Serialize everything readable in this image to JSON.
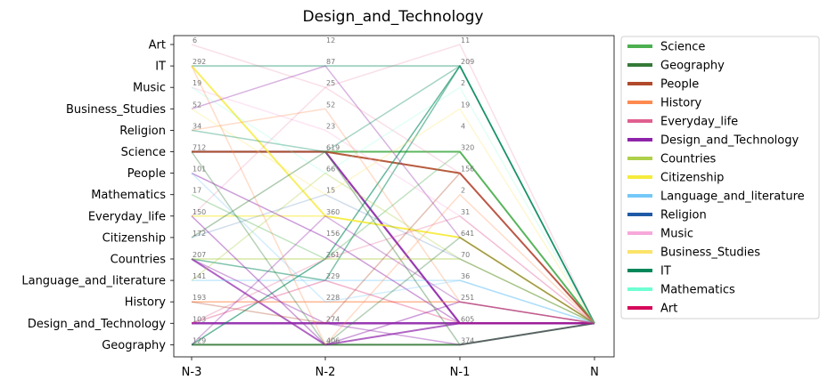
{
  "chart_data": {
    "type": "line",
    "title": "Design_and_Technology",
    "x_ticks": [
      "N-3",
      "N-2",
      "N-1",
      "N"
    ],
    "y_categories": [
      "Art",
      "IT",
      "Music",
      "Business_Studies",
      "Religion",
      "Science",
      "People",
      "Mathematics",
      "Everyday_life",
      "Citizenship",
      "Countries",
      "Language_and_literature",
      "History",
      "Design_and_Technology",
      "Geography"
    ],
    "counts": {
      "N-3": {
        "Art": 6,
        "IT": 292,
        "Music": 19,
        "Business_Studies": 52,
        "Religion": 34,
        "Science": 712,
        "People": 101,
        "Mathematics": 17,
        "Everyday_life": 150,
        "Citizenship": 172,
        "Countries": 207,
        "Language_and_literature": 141,
        "History": 193,
        "Design_and_Technology": 103,
        "Geography": 129
      },
      "N-2": {
        "Art": 12,
        "IT": 87,
        "Music": 25,
        "Business_Studies": 52,
        "Religion": 23,
        "Science": 619,
        "People": 66,
        "Mathematics": 15,
        "Everyday_life": 360,
        "Citizenship": 156,
        "Countries": 261,
        "Language_and_literature": 229,
        "History": 228,
        "Design_and_Technology": 274,
        "Geography": 406
      },
      "N-1": {
        "Art": 11,
        "IT": 209,
        "Music": 2,
        "Business_Studies": 19,
        "Religion": 4,
        "Science": 320,
        "People": 156,
        "Mathematics": 2,
        "Everyday_life": 31,
        "Citizenship": 641,
        "Countries": 70,
        "Language_and_literature": 36,
        "History": 251,
        "Design_and_Technology": 605,
        "Geography": 374
      }
    },
    "target": "Design_and_Technology",
    "legend_placement": "outside-right",
    "legend": [
      {
        "name": "Science",
        "color": "#4caf50"
      },
      {
        "name": "Geography",
        "color": "#357a38"
      },
      {
        "name": "People",
        "color": "#b04a2a"
      },
      {
        "name": "History",
        "color": "#ff8a50"
      },
      {
        "name": "Everyday_life",
        "color": "#e06090"
      },
      {
        "name": "Design_and_Technology",
        "color": "#8e24aa"
      },
      {
        "name": "Countries",
        "color": "#aed04a"
      },
      {
        "name": "Citizenship",
        "color": "#f5eb3b"
      },
      {
        "name": "Language_and_literature",
        "color": "#74c8f8"
      },
      {
        "name": "Religion",
        "color": "#1f5aa6"
      },
      {
        "name": "Music",
        "color": "#f7a8da"
      },
      {
        "name": "Business_Studies",
        "color": "#fbe36a"
      },
      {
        "name": "IT",
        "color": "#00875a"
      },
      {
        "name": "Mathematics",
        "color": "#6effd2"
      },
      {
        "name": "Art",
        "color": "#d6085a"
      }
    ],
    "paths": [
      {
        "series": "Geography",
        "nodes": [
          "Geography",
          "Geography",
          "Geography",
          "Design_and_Technology"
        ],
        "opacity": 0.9,
        "width": 2
      },
      {
        "series": "Design_and_Technology",
        "nodes": [
          "Science",
          "Science",
          "Design_and_Technology",
          "Design_and_Technology"
        ],
        "opacity": 0.9,
        "width": 2.2
      },
      {
        "series": "Design_and_Technology",
        "nodes": [
          "Design_and_Technology",
          "Design_and_Technology",
          "Design_and_Technology",
          "Design_and_Technology"
        ],
        "opacity": 0.9,
        "width": 2.5
      },
      {
        "series": "Design_and_Technology",
        "nodes": [
          "Countries",
          "Geography",
          "Design_and_Technology",
          "Design_and_Technology"
        ],
        "opacity": 0.7,
        "width": 2
      },
      {
        "series": "Science",
        "nodes": [
          "Science",
          "Science",
          "Science",
          "Design_and_Technology"
        ],
        "opacity": 0.9,
        "width": 2
      },
      {
        "series": "People",
        "nodes": [
          "Science",
          "Science",
          "People",
          "Design_and_Technology"
        ],
        "opacity": 0.9,
        "width": 2
      },
      {
        "series": "IT",
        "nodes": [
          "IT",
          "IT",
          "IT",
          "Design_and_Technology"
        ],
        "opacity": 0.35,
        "width": 2
      },
      {
        "series": "IT",
        "nodes": [
          "Geography",
          "Countries",
          "IT",
          "Design_and_Technology"
        ],
        "opacity": 0.6,
        "width": 1.5
      },
      {
        "series": "IT",
        "nodes": [
          "Countries",
          "Language_and_literature",
          "IT",
          "Design_and_Technology"
        ],
        "opacity": 0.5,
        "width": 1.5
      },
      {
        "series": "Citizenship",
        "nodes": [
          "IT",
          "Everyday_life",
          "Citizenship",
          "Design_and_Technology"
        ],
        "opacity": 0.8,
        "width": 2
      },
      {
        "series": "Citizenship",
        "nodes": [
          "Everyday_life",
          "Everyday_life",
          "Citizenship",
          "Design_and_Technology"
        ],
        "opacity": 0.6,
        "width": 1.5
      },
      {
        "series": "History",
        "nodes": [
          "History",
          "History",
          "History",
          "Design_and_Technology"
        ],
        "opacity": 0.6,
        "width": 1.5
      },
      {
        "series": "Countries",
        "nodes": [
          "Countries",
          "Countries",
          "Countries",
          "Design_and_Technology"
        ],
        "opacity": 0.5,
        "width": 1.5
      },
      {
        "series": "Language_and_literature",
        "nodes": [
          "Language_and_literature",
          "Language_and_literature",
          "Language_and_literature",
          "Design_and_Technology"
        ],
        "opacity": 0.4,
        "width": 1.5
      },
      {
        "series": "Everyday_life",
        "nodes": [
          "Art",
          "Music",
          "Art",
          "Design_and_Technology"
        ],
        "opacity": 0.2,
        "width": 1.5
      },
      {
        "series": "Design_and_Technology",
        "nodes": [
          "Everyday_life",
          "Geography",
          "History",
          "Design_and_Technology"
        ],
        "opacity": 0.45,
        "width": 1.5
      },
      {
        "series": "Design_and_Technology",
        "nodes": [
          "People",
          "Citizenship",
          "Design_and_Technology",
          "Design_and_Technology"
        ],
        "opacity": 0.45,
        "width": 1.5
      },
      {
        "series": "Design_and_Technology",
        "nodes": [
          "Business_Studies",
          "IT",
          "Citizenship",
          "Design_and_Technology"
        ],
        "opacity": 0.35,
        "width": 1.5
      },
      {
        "series": "Geography",
        "nodes": [
          "Citizenship",
          "Science",
          "Geography",
          "Design_and_Technology"
        ],
        "opacity": 0.4,
        "width": 1.5
      },
      {
        "series": "People",
        "nodes": [
          "History",
          "Design_and_Technology",
          "People",
          "Design_and_Technology"
        ],
        "opacity": 0.35,
        "width": 1.5
      },
      {
        "series": "History",
        "nodes": [
          "Religion",
          "Business_Studies",
          "History",
          "Design_and_Technology"
        ],
        "opacity": 0.3,
        "width": 1.5
      },
      {
        "series": "Science",
        "nodes": [
          "Mathematics",
          "Countries",
          "Science",
          "Design_and_Technology"
        ],
        "opacity": 0.35,
        "width": 1.5
      },
      {
        "series": "Countries",
        "nodes": [
          "Language_and_literature",
          "People",
          "Countries",
          "Design_and_Technology"
        ],
        "opacity": 0.35,
        "width": 1.5
      },
      {
        "series": "Music",
        "nodes": [
          "Music",
          "Religion",
          "Everyday_life",
          "Design_and_Technology"
        ],
        "opacity": 0.3,
        "width": 1.5
      },
      {
        "series": "Language_and_literature",
        "nodes": [
          "People",
          "History",
          "Language_and_literature",
          "Design_and_Technology"
        ],
        "opacity": 0.3,
        "width": 1.5
      },
      {
        "series": "Business_Studies",
        "nodes": [
          "Business_Studies",
          "Mathematics",
          "Business_Studies",
          "Design_and_Technology"
        ],
        "opacity": 0.3,
        "width": 1.5
      },
      {
        "series": "Everyday_life",
        "nodes": [
          "Design_and_Technology",
          "Countries",
          "Everyday_life",
          "Design_and_Technology"
        ],
        "opacity": 0.3,
        "width": 1.5
      },
      {
        "series": "Design_and_Technology",
        "nodes": [
          "Countries",
          "Design_and_Technology",
          "Geography",
          "Design_and_Technology"
        ],
        "opacity": 0.4,
        "width": 1.5
      },
      {
        "series": "Design_and_Technology",
        "nodes": [
          "Geography",
          "Everyday_life",
          "History",
          "Design_and_Technology"
        ],
        "opacity": 0.35,
        "width": 1.5
      },
      {
        "series": "Geography",
        "nodes": [
          "Science",
          "Geography",
          "Citizenship",
          "Design_and_Technology"
        ],
        "opacity": 0.35,
        "width": 1.5
      },
      {
        "series": "Art",
        "nodes": [
          "Design_and_Technology",
          "Language_and_literature",
          "Design_and_Technology",
          "Design_and_Technology"
        ],
        "opacity": 0.3,
        "width": 1.5
      },
      {
        "series": "IT",
        "nodes": [
          "Religion",
          "Science",
          "IT",
          "Design_and_Technology"
        ],
        "opacity": 0.35,
        "width": 1.5
      },
      {
        "series": "History",
        "nodes": [
          "IT",
          "Geography",
          "Mathematics",
          "Design_and_Technology"
        ],
        "opacity": 0.3,
        "width": 1.5
      },
      {
        "series": "Everyday_life",
        "nodes": [
          "Everyday_life",
          "Music",
          "People",
          "Design_and_Technology"
        ],
        "opacity": 0.2,
        "width": 1.5
      },
      {
        "series": "Religion",
        "nodes": [
          "Citizenship",
          "Mathematics",
          "Countries",
          "Design_and_Technology"
        ],
        "opacity": 0.2,
        "width": 1.5
      },
      {
        "series": "Mathematics",
        "nodes": [
          "Music",
          "People",
          "Music",
          "Design_and_Technology"
        ],
        "opacity": 0.2,
        "width": 1.5
      }
    ]
  }
}
